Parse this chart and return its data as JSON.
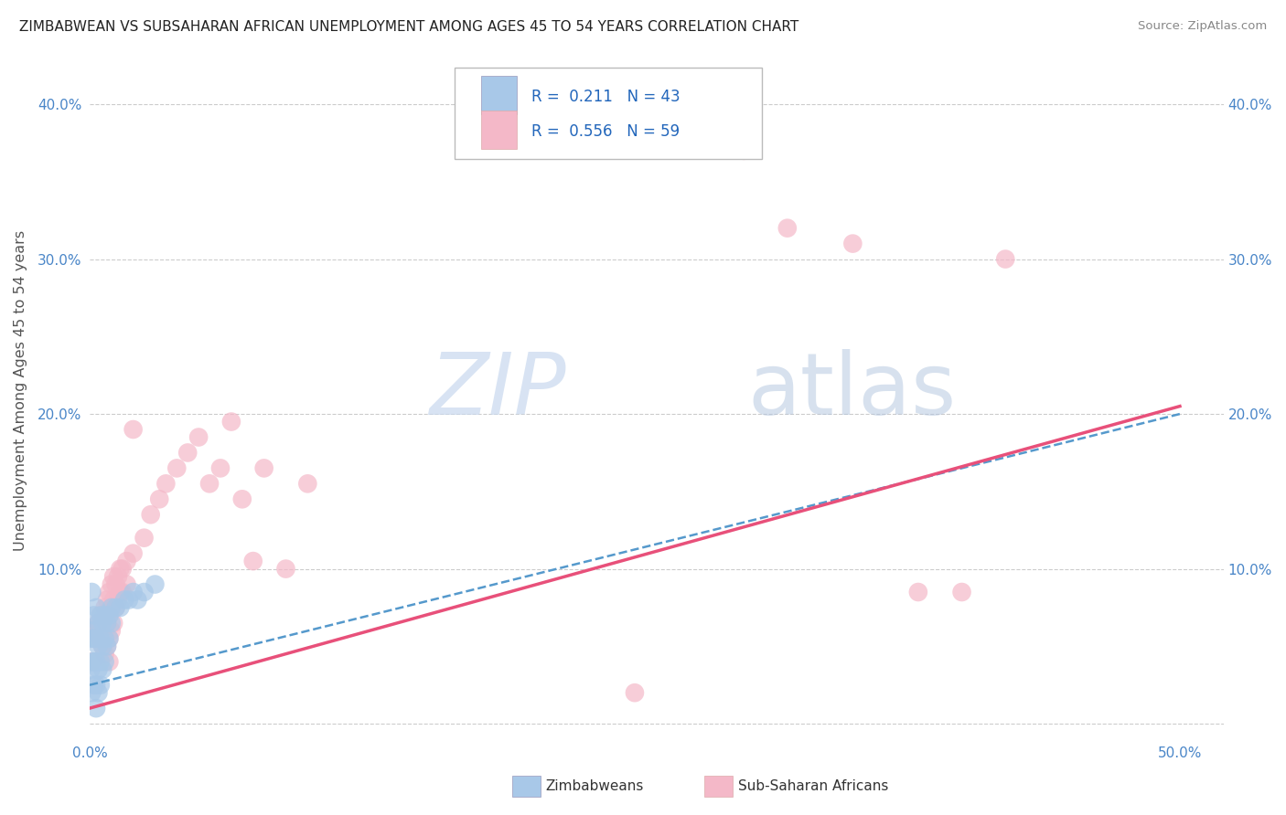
{
  "title": "ZIMBABWEAN VS SUBSAHARAN AFRICAN UNEMPLOYMENT AMONG AGES 45 TO 54 YEARS CORRELATION CHART",
  "source": "Source: ZipAtlas.com",
  "ylabel": "Unemployment Among Ages 45 to 54 years",
  "xlim": [
    0.0,
    0.52
  ],
  "ylim": [
    -0.01,
    0.44
  ],
  "xticks": [
    0.0,
    0.1,
    0.2,
    0.3,
    0.4,
    0.5
  ],
  "xticklabels": [
    "0.0%",
    "",
    "",
    "",
    "",
    "50.0%"
  ],
  "yticks": [
    0.0,
    0.1,
    0.2,
    0.3,
    0.4
  ],
  "yticklabels": [
    "",
    "10.0%",
    "20.0%",
    "30.0%",
    "40.0%"
  ],
  "right_yticklabels": [
    "",
    "10.0%",
    "20.0%",
    "30.0%",
    "40.0%"
  ],
  "background_color": "#ffffff",
  "grid_color": "#cccccc",
  "watermark_zip": "ZIP",
  "watermark_atlas": "atlas",
  "legend_R_blue": "0.211",
  "legend_N_blue": "43",
  "legend_R_pink": "0.556",
  "legend_N_pink": "59",
  "blue_color": "#a8c8e8",
  "pink_color": "#f4b8c8",
  "blue_line_color": "#5599cc",
  "pink_line_color": "#e8507a",
  "blue_scatter": [
    [
      0.001,
      0.085
    ],
    [
      0.001,
      0.06
    ],
    [
      0.001,
      0.04
    ],
    [
      0.001,
      0.02
    ],
    [
      0.002,
      0.07
    ],
    [
      0.002,
      0.055
    ],
    [
      0.002,
      0.04
    ],
    [
      0.002,
      0.025
    ],
    [
      0.003,
      0.075
    ],
    [
      0.003,
      0.055
    ],
    [
      0.003,
      0.04
    ],
    [
      0.003,
      0.025
    ],
    [
      0.003,
      0.01
    ],
    [
      0.004,
      0.065
    ],
    [
      0.004,
      0.05
    ],
    [
      0.004,
      0.035
    ],
    [
      0.004,
      0.02
    ],
    [
      0.005,
      0.07
    ],
    [
      0.005,
      0.055
    ],
    [
      0.005,
      0.04
    ],
    [
      0.005,
      0.025
    ],
    [
      0.006,
      0.065
    ],
    [
      0.006,
      0.05
    ],
    [
      0.006,
      0.035
    ],
    [
      0.007,
      0.07
    ],
    [
      0.007,
      0.055
    ],
    [
      0.007,
      0.04
    ],
    [
      0.008,
      0.065
    ],
    [
      0.008,
      0.05
    ],
    [
      0.009,
      0.07
    ],
    [
      0.009,
      0.055
    ],
    [
      0.01,
      0.075
    ],
    [
      0.01,
      0.065
    ],
    [
      0.012,
      0.075
    ],
    [
      0.014,
      0.075
    ],
    [
      0.016,
      0.08
    ],
    [
      0.018,
      0.08
    ],
    [
      0.02,
      0.085
    ],
    [
      0.022,
      0.08
    ],
    [
      0.025,
      0.085
    ],
    [
      0.03,
      0.09
    ],
    [
      0.0005,
      0.055
    ],
    [
      0.0005,
      0.035
    ]
  ],
  "pink_scatter": [
    [
      0.001,
      0.06
    ],
    [
      0.002,
      0.055
    ],
    [
      0.003,
      0.06
    ],
    [
      0.004,
      0.065
    ],
    [
      0.005,
      0.07
    ],
    [
      0.005,
      0.055
    ],
    [
      0.006,
      0.065
    ],
    [
      0.006,
      0.05
    ],
    [
      0.007,
      0.075
    ],
    [
      0.007,
      0.06
    ],
    [
      0.007,
      0.045
    ],
    [
      0.008,
      0.08
    ],
    [
      0.008,
      0.065
    ],
    [
      0.008,
      0.05
    ],
    [
      0.009,
      0.085
    ],
    [
      0.009,
      0.07
    ],
    [
      0.009,
      0.055
    ],
    [
      0.009,
      0.04
    ],
    [
      0.01,
      0.09
    ],
    [
      0.01,
      0.075
    ],
    [
      0.01,
      0.06
    ],
    [
      0.011,
      0.095
    ],
    [
      0.011,
      0.08
    ],
    [
      0.011,
      0.065
    ],
    [
      0.012,
      0.09
    ],
    [
      0.012,
      0.075
    ],
    [
      0.013,
      0.095
    ],
    [
      0.013,
      0.08
    ],
    [
      0.014,
      0.1
    ],
    [
      0.014,
      0.085
    ],
    [
      0.015,
      0.1
    ],
    [
      0.015,
      0.085
    ],
    [
      0.017,
      0.105
    ],
    [
      0.017,
      0.09
    ],
    [
      0.02,
      0.11
    ],
    [
      0.02,
      0.19
    ],
    [
      0.025,
      0.12
    ],
    [
      0.028,
      0.135
    ],
    [
      0.032,
      0.145
    ],
    [
      0.035,
      0.155
    ],
    [
      0.04,
      0.165
    ],
    [
      0.045,
      0.175
    ],
    [
      0.05,
      0.185
    ],
    [
      0.055,
      0.155
    ],
    [
      0.06,
      0.165
    ],
    [
      0.065,
      0.195
    ],
    [
      0.07,
      0.145
    ],
    [
      0.075,
      0.105
    ],
    [
      0.08,
      0.165
    ],
    [
      0.09,
      0.1
    ],
    [
      0.1,
      0.155
    ],
    [
      0.25,
      0.02
    ],
    [
      0.3,
      0.37
    ],
    [
      0.32,
      0.32
    ],
    [
      0.35,
      0.31
    ],
    [
      0.38,
      0.085
    ],
    [
      0.4,
      0.085
    ],
    [
      0.42,
      0.3
    ],
    [
      0.001,
      0.04
    ]
  ],
  "blue_line": [
    [
      0.0,
      0.025
    ],
    [
      0.5,
      0.2
    ]
  ],
  "pink_line": [
    [
      0.0,
      0.01
    ],
    [
      0.5,
      0.205
    ]
  ]
}
